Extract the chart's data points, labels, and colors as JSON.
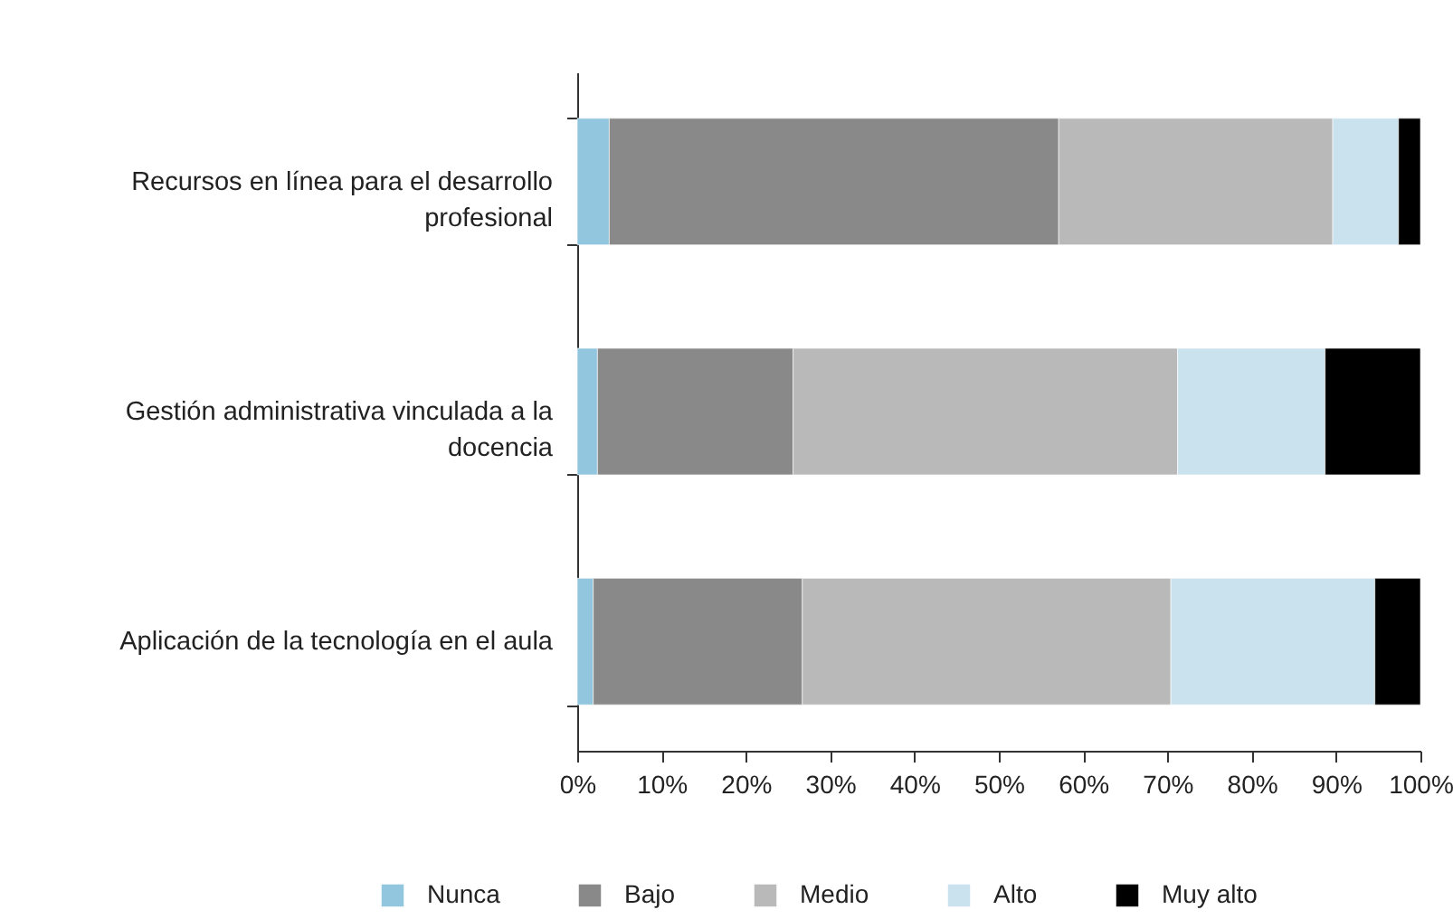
{
  "chart_data": {
    "type": "bar",
    "orientation": "horizontal",
    "stacked": true,
    "categories": [
      "Recursos en línea para el desarrollo profesional",
      "Gestión administrativa vinculada a la docencia",
      "Aplicación de la tecnología en el aula"
    ],
    "series": [
      {
        "name": "Nunca",
        "color": "#92c5de",
        "values": [
          3.8,
          2.4,
          1.9
        ]
      },
      {
        "name": "Bajo",
        "color": "#898989",
        "values": [
          53.3,
          23.2,
          24.8
        ]
      },
      {
        "name": "Medio",
        "color": "#b9b9b9",
        "values": [
          32.5,
          45.6,
          43.7
        ]
      },
      {
        "name": "Alto",
        "color": "#cae2ee",
        "values": [
          7.8,
          17.5,
          24.2
        ]
      },
      {
        "name": "Muy alto",
        "color": "#000000",
        "values": [
          2.6,
          11.3,
          5.4
        ]
      }
    ],
    "xlim": [
      0,
      100
    ],
    "xticks": [
      {
        "value": 0,
        "label": "0%"
      },
      {
        "value": 10,
        "label": "10%"
      },
      {
        "value": 20,
        "label": "20%"
      },
      {
        "value": 30,
        "label": "30%"
      },
      {
        "value": 40,
        "label": "40%"
      },
      {
        "value": 50,
        "label": "50%"
      },
      {
        "value": 60,
        "label": "60%"
      },
      {
        "value": 70,
        "label": "70%"
      },
      {
        "value": 80,
        "label": "80%"
      },
      {
        "value": 90,
        "label": "90%"
      },
      {
        "value": 100,
        "label": "100%"
      }
    ],
    "grid": false,
    "legend": "bottom"
  }
}
